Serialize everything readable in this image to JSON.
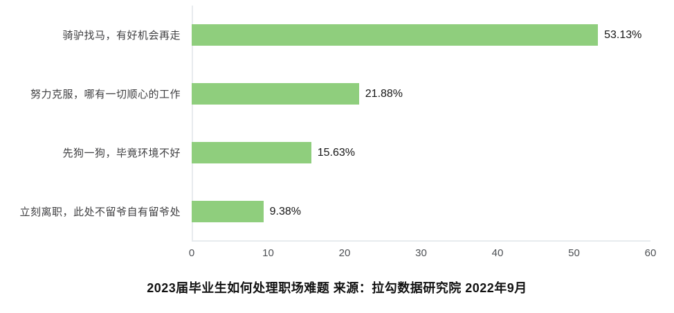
{
  "chart_data": {
    "type": "bar",
    "orientation": "horizontal",
    "title": "2023届毕业生如何处理职场难题 来源：拉勾数据研究院 2022年9月",
    "title_position": "bottom",
    "categories": [
      "骑驴找马，有好机会再走",
      "努力克服，哪有一切顺心的工作",
      "先狗一狗，毕竟环境不好",
      "立刻离职，此处不留爷自有留爷处"
    ],
    "values": [
      53.13,
      21.88,
      15.63,
      9.38
    ],
    "value_labels": [
      "53.13%",
      "21.88%",
      "15.63%",
      "9.38%"
    ],
    "xlabel": "",
    "ylabel": "",
    "xlim": [
      0,
      60
    ],
    "x_ticks": [
      0,
      10,
      20,
      30,
      40,
      50,
      60
    ],
    "grid": false,
    "legend": "none",
    "bar_color": "#8fce7d",
    "axis_color": "#e7ebee",
    "background_color": "#ffffff"
  }
}
